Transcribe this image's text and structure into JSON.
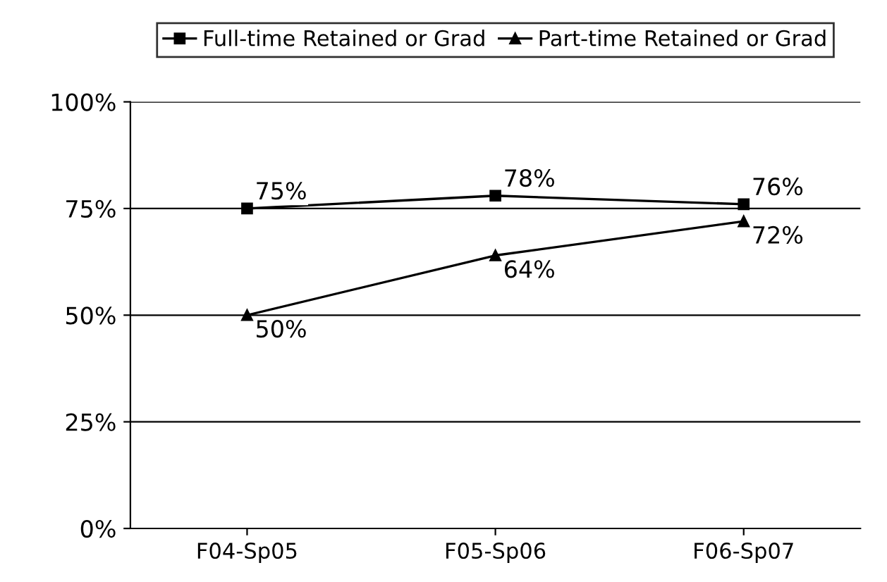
{
  "chart_data": {
    "type": "line",
    "categories": [
      "F04-Sp05",
      "F05-Sp06",
      "F06-Sp07"
    ],
    "series": [
      {
        "name": "Full-time Retained or Grad",
        "color": "#000000",
        "values": [
          75,
          78,
          76
        ],
        "marker": "square",
        "value_labels": [
          "75%",
          "78%",
          "76%"
        ]
      },
      {
        "name": "Part-time Retained or Grad",
        "color": "#000000",
        "values": [
          50,
          64,
          72
        ],
        "marker": "triangle",
        "value_labels": [
          "50%",
          "64%",
          "72%"
        ]
      }
    ],
    "ylim": [
      0,
      100
    ],
    "yticks": [
      {
        "value": 0,
        "label": "0%"
      },
      {
        "value": 25,
        "label": "25%"
      },
      {
        "value": 50,
        "label": "50%"
      },
      {
        "value": 75,
        "label": "75%"
      },
      {
        "value": 100,
        "label": "100%"
      }
    ],
    "grid": "y",
    "legend": "top",
    "line_style": "solid"
  }
}
